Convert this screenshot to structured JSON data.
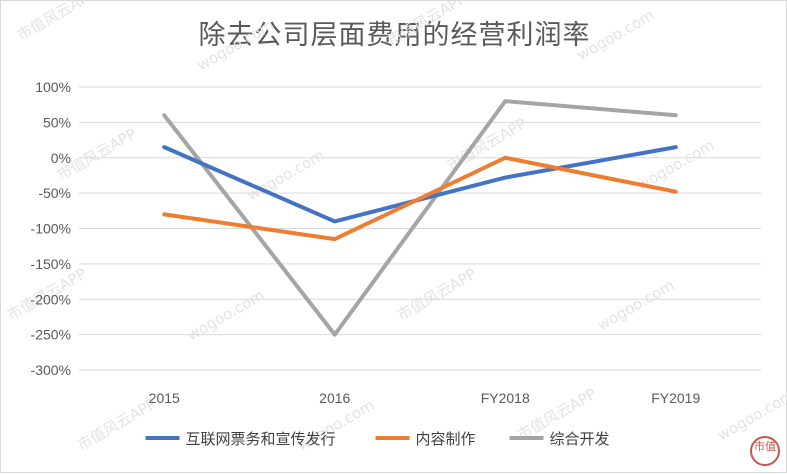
{
  "chart_data": {
    "type": "line",
    "title": "除去公司层面费用的经营利润率",
    "categories": [
      "2015",
      "2016",
      "FY2018",
      "FY2019"
    ],
    "y_ticks": [
      "100%",
      "50%",
      "0%",
      "-50%",
      "-100%",
      "-150%",
      "-200%",
      "-250%",
      "-300%"
    ],
    "ylim": [
      -300,
      100
    ],
    "grid": true,
    "legend_position": "bottom",
    "series": [
      {
        "name": "互联网票务和宣传发行",
        "values": [
          15,
          -90,
          -28,
          15
        ],
        "color": "#4472c4"
      },
      {
        "name": "内容制作",
        "values": [
          -80,
          -115,
          0,
          -48
        ],
        "color": "#ed7d31"
      },
      {
        "name": "综合开发",
        "values": [
          60,
          -250,
          80,
          60
        ],
        "color": "#a5a5a5"
      }
    ]
  },
  "watermark": {
    "text_a": "市值风云APP",
    "text_b": "wogoo.com",
    "seal": "市值"
  }
}
